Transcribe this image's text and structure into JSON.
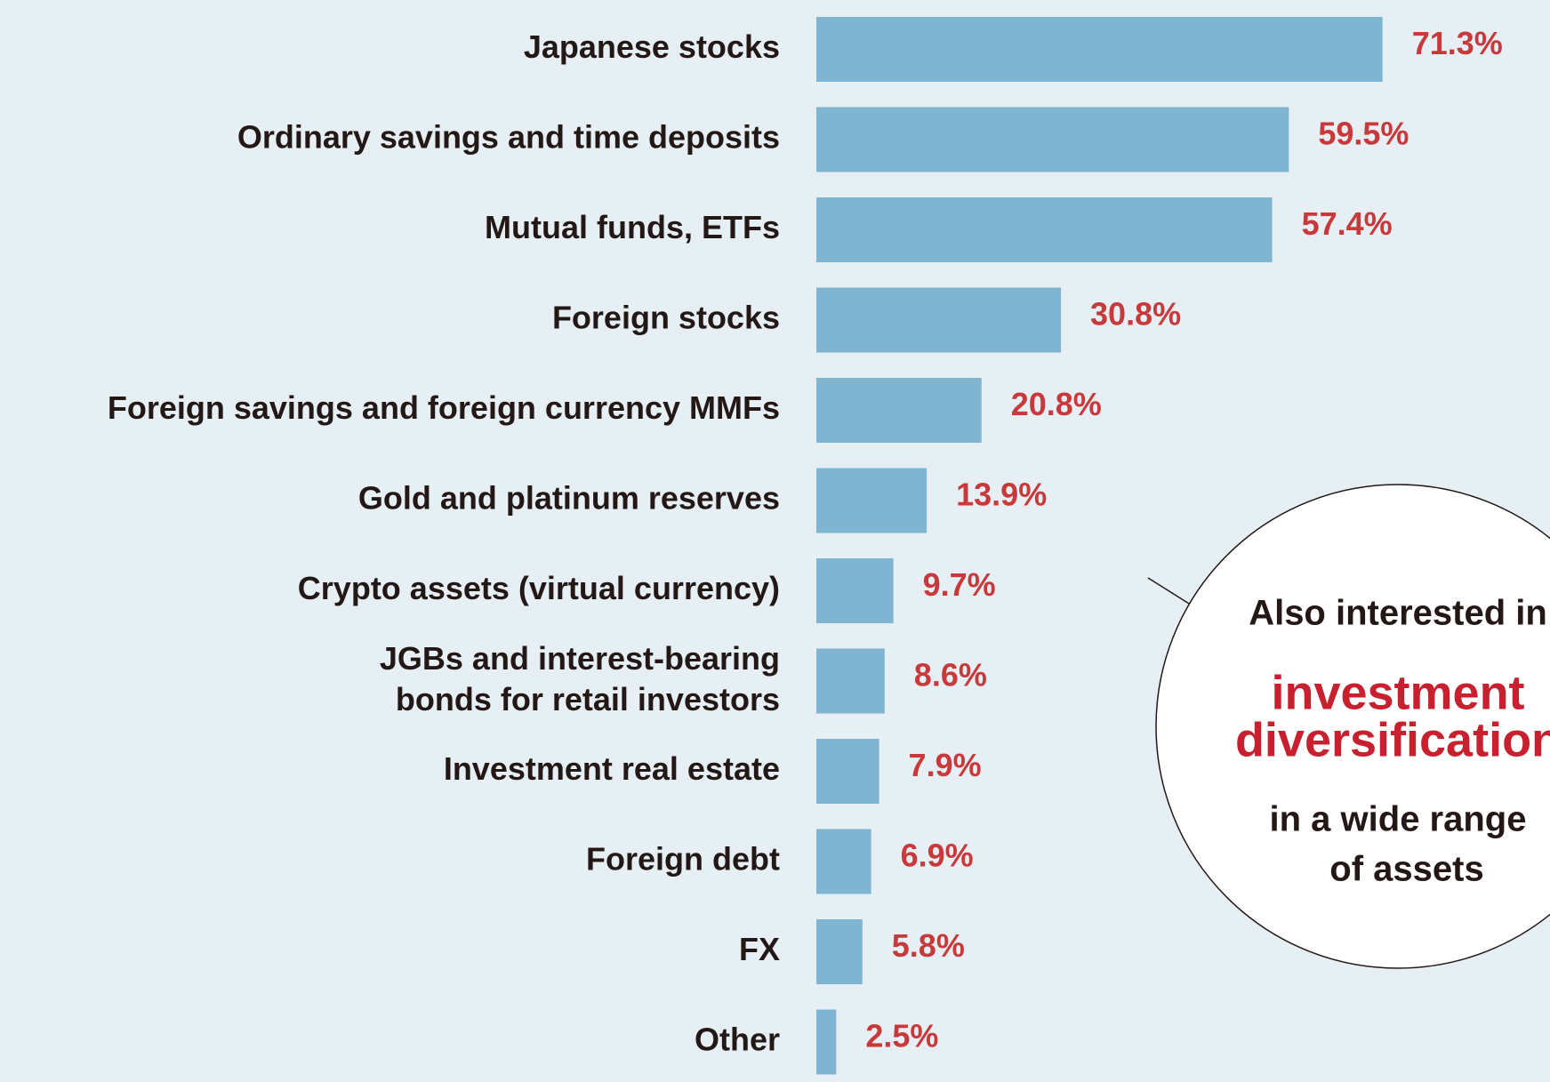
{
  "chart_data": {
    "type": "bar",
    "orientation": "horizontal",
    "categories": [
      "Japanese stocks",
      "Ordinary savings and time deposits",
      "Mutual funds, ETFs",
      "Foreign stocks",
      "Foreign savings and foreign currency MMFs",
      "Gold and platinum reserves",
      "Crypto assets (virtual currency)",
      [
        "JGBs and interest-bearing",
        "bonds for retail investors"
      ],
      "Investment real estate",
      "Foreign debt",
      "FX",
      "Other"
    ],
    "values": [
      71.3,
      59.5,
      57.4,
      30.8,
      20.8,
      13.9,
      9.7,
      8.6,
      7.9,
      6.9,
      5.8,
      2.5
    ],
    "value_labels": [
      "71.3%",
      "59.5%",
      "57.4%",
      "30.8%",
      "20.8%",
      "13.9%",
      "9.7%",
      "8.6%",
      "7.9%",
      "6.9%",
      "5.8%",
      "2.5%"
    ],
    "color": "#7fb5d1",
    "label_color": "#c8393b",
    "annotation": {
      "lines": [
        "Also interested in",
        "investment",
        "diversification",
        "in a wide range",
        "of assets"
      ]
    }
  }
}
